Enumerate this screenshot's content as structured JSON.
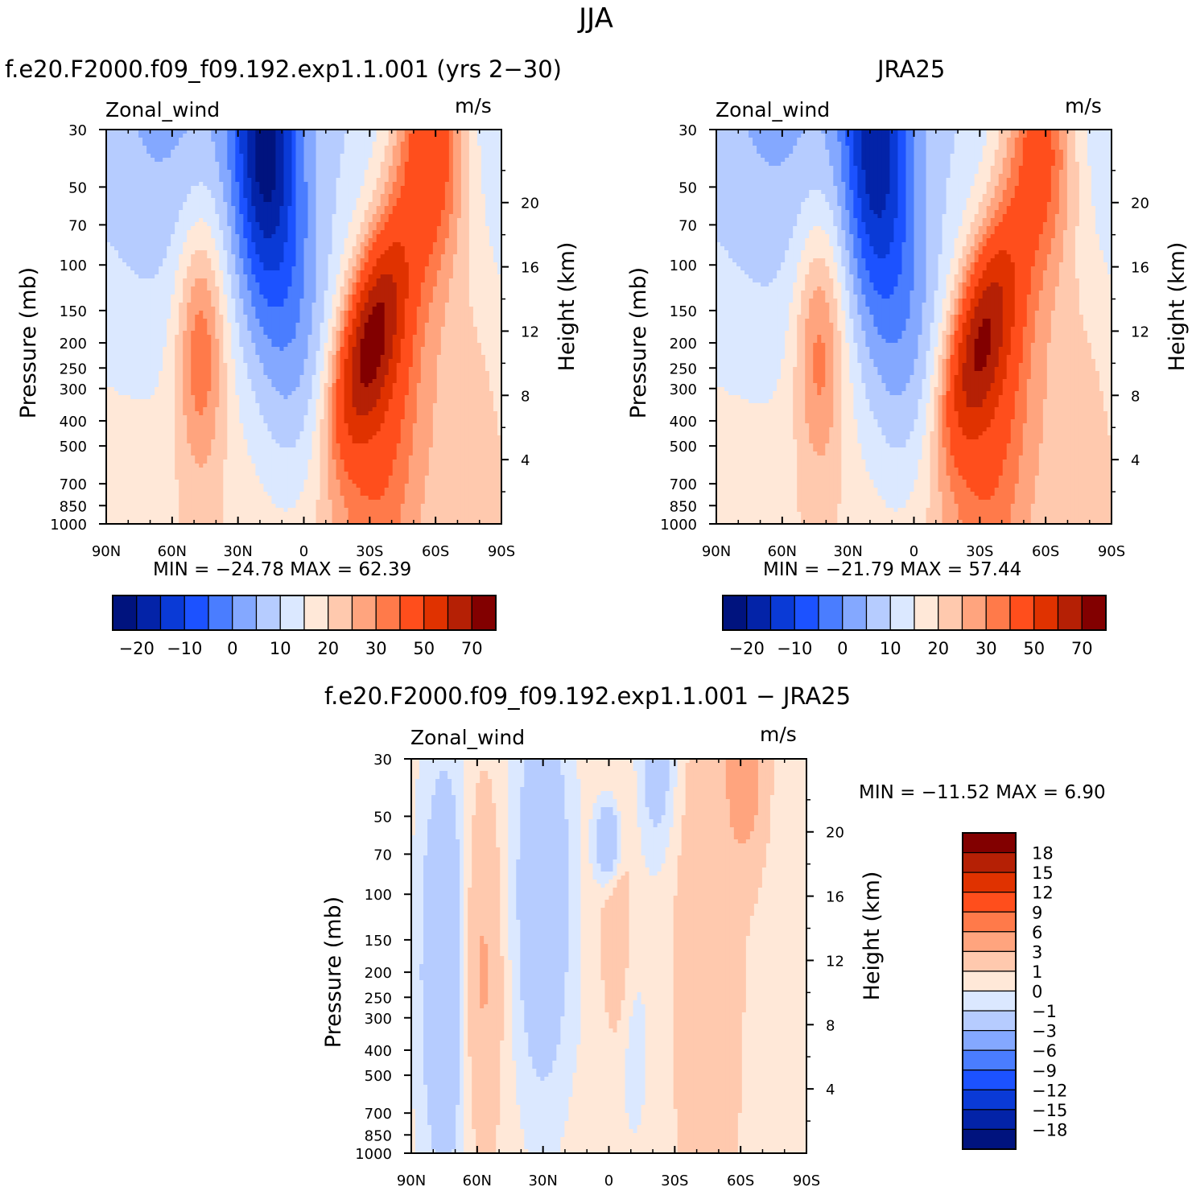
{
  "figure": {
    "title": "JJA"
  },
  "panels": [
    {
      "subtitle": "f.e20.F2000.f09_f09.192.exp1.1.001 (yrs 2−30)",
      "left_label": "Zonal_wind",
      "right_label": "m/s",
      "stats": "MIN = −24.78   MAX =   62.39"
    },
    {
      "subtitle": "JRA25",
      "left_label": "Zonal_wind",
      "right_label": "m/s",
      "stats": "MIN = −21.79   MAX =   57.44"
    },
    {
      "subtitle": "f.e20.F2000.f09_f09.192.exp1.1.001 − JRA25",
      "left_label": "Zonal_wind",
      "right_label": "m/s",
      "stats": "MIN = −11.52   MAX =     6.90"
    }
  ],
  "chart_data": [
    {
      "type": "heatmap",
      "title": "f.e20.F2000.f09_f09.192.exp1.1.001 (yrs 2−30)",
      "variable": "Zonal_wind",
      "units": "m/s",
      "xlabel": "",
      "ylabel": "Pressure (mb)",
      "ylabel_right": "Height (km)",
      "x_ticks": [
        "90N",
        "60N",
        "30N",
        "0",
        "30S",
        "60S",
        "90S"
      ],
      "y_ticks": [
        30,
        50,
        70,
        100,
        150,
        200,
        250,
        300,
        400,
        500,
        700,
        850,
        1000
      ],
      "y_scale": "log",
      "y_right_ticks": [
        4,
        8,
        12,
        16,
        20
      ],
      "xlim": [
        90,
        -90
      ],
      "ylim": [
        1000,
        30
      ],
      "min": -24.78,
      "max": 62.39,
      "colorbar_ticks": [
        "−20",
        "−10",
        "0",
        "10",
        "20",
        "30",
        "50",
        "70"
      ],
      "features": [
        {
          "kind": "max",
          "lat": -30,
          "p": 200,
          "value": 62.39
        },
        {
          "kind": "min",
          "lat": 18,
          "p": 35,
          "value": -24.78
        },
        {
          "kind": "local_max",
          "lat": 47,
          "p": 200,
          "value": 20
        }
      ]
    },
    {
      "type": "heatmap",
      "title": "JRA25",
      "variable": "Zonal_wind",
      "units": "m/s",
      "xlabel": "",
      "ylabel": "Pressure (mb)",
      "ylabel_right": "Height (km)",
      "x_ticks": [
        "90N",
        "60N",
        "30N",
        "0",
        "30S",
        "60S",
        "90S"
      ],
      "y_ticks": [
        30,
        50,
        70,
        100,
        150,
        200,
        250,
        300,
        400,
        500,
        700,
        850,
        1000
      ],
      "y_scale": "log",
      "y_right_ticks": [
        4,
        8,
        12,
        16,
        20
      ],
      "xlim": [
        90,
        -90
      ],
      "ylim": [
        1000,
        30
      ],
      "min": -21.79,
      "max": 57.44,
      "colorbar_ticks": [
        "−20",
        "−10",
        "0",
        "10",
        "20",
        "30",
        "50",
        "70"
      ],
      "features": [
        {
          "kind": "max",
          "lat": -30,
          "p": 200,
          "value": 57.44
        },
        {
          "kind": "min",
          "lat": 16,
          "p": 33,
          "value": -21.79
        },
        {
          "kind": "local_max",
          "lat": 43,
          "p": 200,
          "value": 20
        }
      ]
    },
    {
      "type": "heatmap",
      "title": "f.e20.F2000.f09_f09.192.exp1.1.001 − JRA25",
      "variable": "Zonal_wind",
      "units": "m/s",
      "xlabel": "",
      "ylabel": "Pressure (mb)",
      "ylabel_right": "Height (km)",
      "x_ticks": [
        "90N",
        "60N",
        "30N",
        "0",
        "30S",
        "60S",
        "90S"
      ],
      "y_ticks": [
        30,
        50,
        70,
        100,
        150,
        200,
        250,
        300,
        400,
        500,
        700,
        850,
        1000
      ],
      "y_scale": "log",
      "y_right_ticks": [
        4,
        8,
        12,
        16,
        20
      ],
      "xlim": [
        90,
        -90
      ],
      "ylim": [
        1000,
        30
      ],
      "min": -11.52,
      "max": 6.9,
      "colorbar_ticks": [
        "18",
        "15",
        "12",
        "9",
        "6",
        "3",
        "1",
        "0",
        "−1",
        "−3",
        "−6",
        "−9",
        "−12",
        "−15",
        "−18"
      ]
    }
  ],
  "colors": {
    "abs_levels": [
      "#00137e",
      "#0323a8",
      "#0a3ad6",
      "#1c52ff",
      "#4a7dff",
      "#84a8ff",
      "#b6ccff",
      "#dbe8ff",
      "#ffe8d8",
      "#ffc9ae",
      "#ffa47e",
      "#ff7a4a",
      "#ff4e1c",
      "#e03200",
      "#b52005",
      "#820000"
    ],
    "diff_levels": [
      "#00137e",
      "#0323a8",
      "#0a3ad6",
      "#1c52ff",
      "#4a7dff",
      "#84a8ff",
      "#b6ccff",
      "#dbe8ff",
      "#ffe8d8",
      "#ffc9ae",
      "#ffa47e",
      "#ff7a4a",
      "#ff4e1c",
      "#e03200",
      "#b52005",
      "#820000"
    ]
  }
}
